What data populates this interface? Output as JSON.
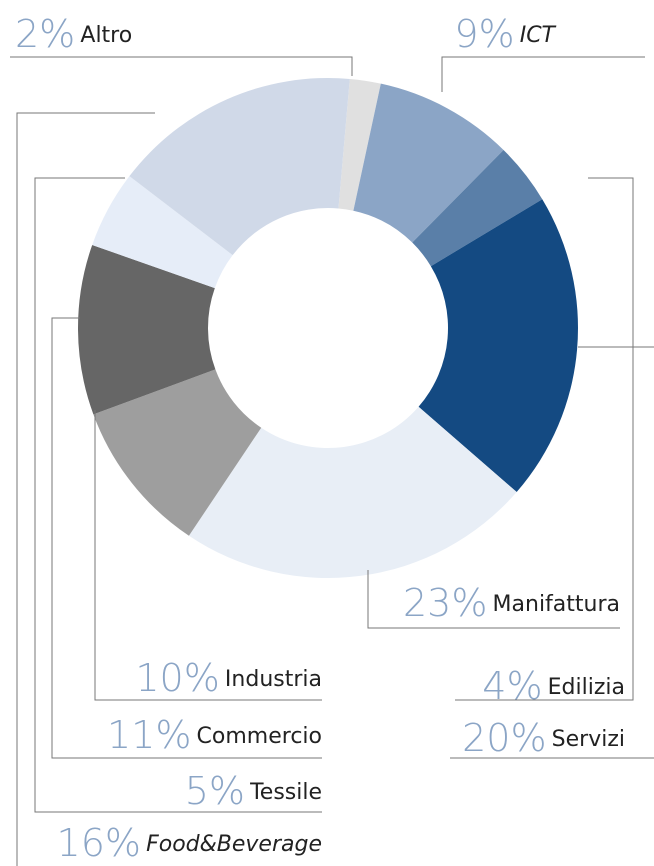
{
  "chart_data": {
    "type": "donut",
    "categories": [
      "Altro",
      "ICT",
      "Edilizia",
      "Servizi",
      "Manifattura",
      "Industria",
      "Commercio",
      "Tessile",
      "Food&Beverage"
    ],
    "values": [
      2,
      9,
      4,
      20,
      23,
      10,
      11,
      5,
      16
    ],
    "value_labels": [
      "2%",
      "9%",
      "4%",
      "20%",
      "23%",
      "10%",
      "11%",
      "5%",
      "16%"
    ],
    "colors": [
      "#e0e0e0",
      "#8ba5c6",
      "#5a7fa8",
      "#144a82",
      "#e8eef6",
      "#9e9e9e",
      "#666666",
      "#e6edf8",
      "#d0d9e8"
    ]
  }
}
